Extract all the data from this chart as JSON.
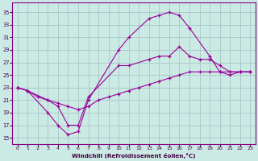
{
  "xlabel": "Windchill (Refroidissement éolien,°C)",
  "bg_color": "#cceae4",
  "grid_color": "#aacccc",
  "line_color": "#990099",
  "x_ticks": [
    0,
    1,
    2,
    3,
    4,
    5,
    6,
    7,
    8,
    9,
    10,
    11,
    12,
    13,
    14,
    15,
    16,
    17,
    18,
    19,
    20,
    21,
    22,
    23
  ],
  "y_ticks": [
    15,
    17,
    19,
    21,
    23,
    25,
    27,
    29,
    31,
    33,
    35
  ],
  "ylim": [
    14.0,
    36.5
  ],
  "xlim": [
    -0.5,
    23.5
  ],
  "curve1_x": [
    0,
    1,
    3,
    4,
    5,
    6,
    7,
    10,
    11,
    13,
    14,
    15,
    16,
    17,
    19,
    20,
    21,
    22,
    23
  ],
  "curve1_y": [
    23.0,
    22.5,
    19.0,
    17.0,
    15.5,
    16.0,
    21.0,
    29.0,
    31.0,
    34.0,
    34.5,
    35.0,
    34.5,
    32.5,
    28.0,
    25.5,
    25.5,
    25.5,
    25.5
  ],
  "curve2_x": [
    0,
    1,
    3,
    4,
    5,
    6,
    7,
    10,
    11,
    13,
    14,
    15,
    16,
    17,
    18,
    19,
    20,
    21,
    22,
    23
  ],
  "curve2_y": [
    23.0,
    22.5,
    21.0,
    20.0,
    17.0,
    17.0,
    21.5,
    26.5,
    26.5,
    27.5,
    28.0,
    28.0,
    29.5,
    28.0,
    27.5,
    27.5,
    26.5,
    25.5,
    25.5,
    25.5
  ],
  "curve3_x": [
    0,
    1,
    2,
    3,
    4,
    5,
    6,
    7,
    8,
    9,
    10,
    11,
    12,
    13,
    14,
    15,
    16,
    17,
    18,
    19,
    20,
    21,
    22,
    23
  ],
  "curve3_y": [
    23.0,
    22.5,
    21.5,
    21.0,
    20.5,
    20.0,
    19.5,
    20.0,
    21.0,
    21.5,
    22.0,
    22.5,
    23.0,
    23.5,
    24.0,
    24.5,
    25.0,
    25.5,
    25.5,
    25.5,
    25.5,
    25.0,
    25.5,
    25.5
  ]
}
